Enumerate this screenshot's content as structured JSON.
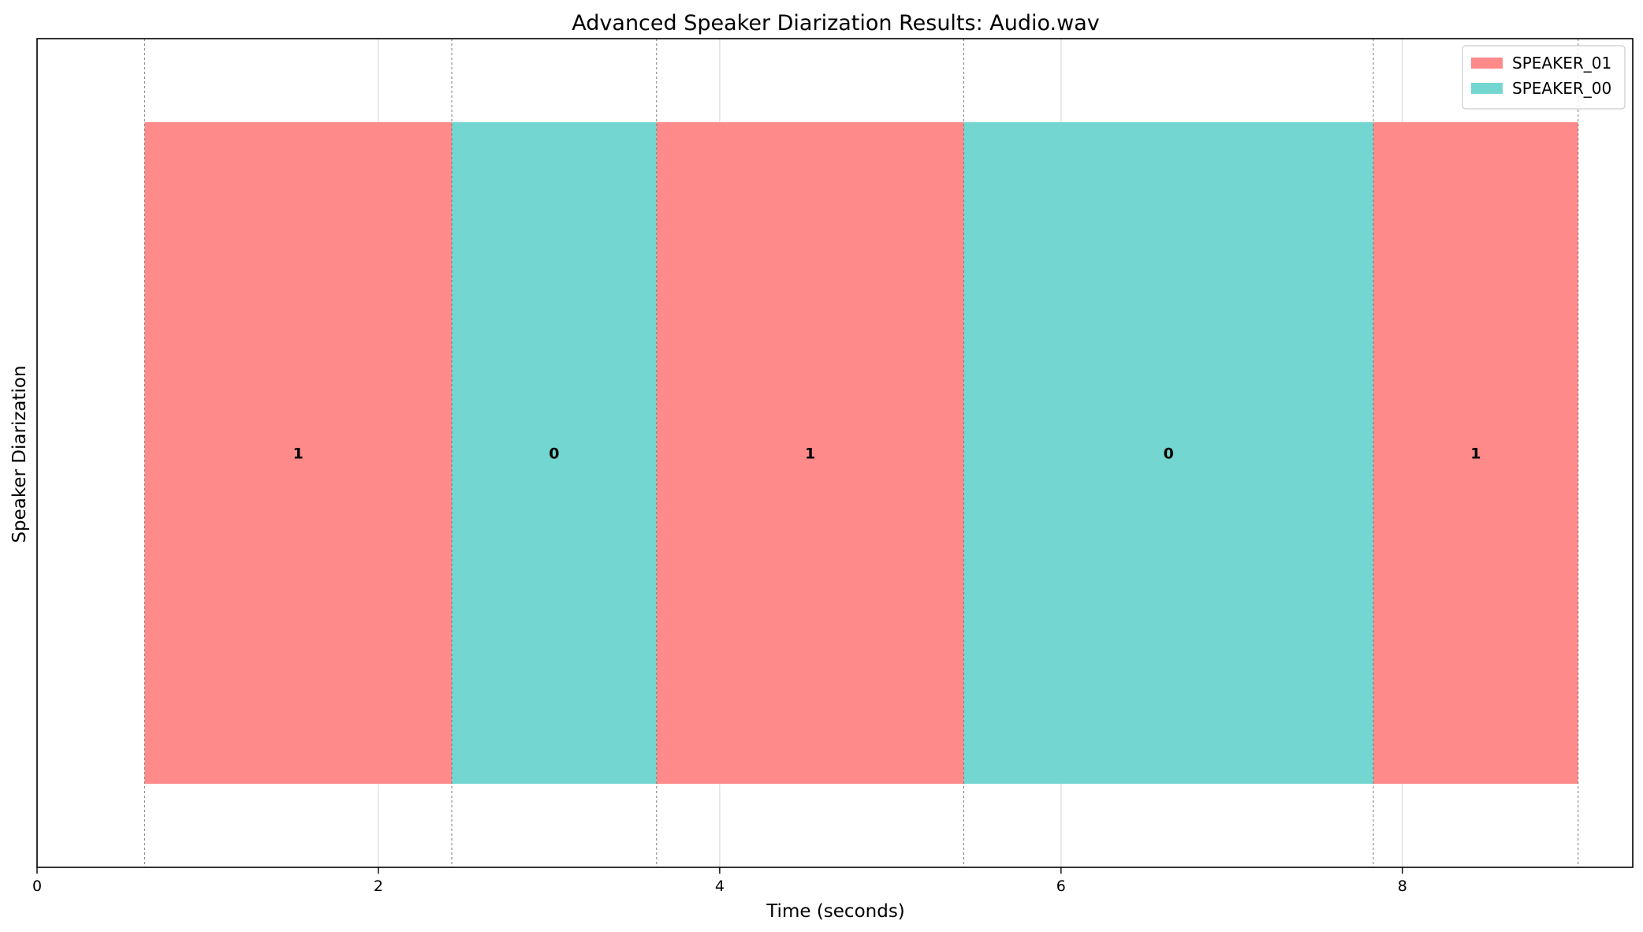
{
  "chart_data": {
    "type": "bar",
    "orientation": "horizontal-timeline",
    "title": "Advanced Speaker Diarization Results: Audio.wav",
    "xlabel": "Time (seconds)",
    "ylabel": "Speaker Diarization",
    "xlim": [
      0,
      9.35
    ],
    "xticks": [
      0,
      2,
      4,
      6,
      8
    ],
    "grid": true,
    "legend_position": "top-right",
    "speakers": [
      {
        "name": "SPEAKER_01",
        "color": "#ff8a8a"
      },
      {
        "name": "SPEAKER_00",
        "color": "#73d6d0"
      }
    ],
    "segments": [
      {
        "speaker": "SPEAKER_01",
        "start": 0.63,
        "end": 2.43,
        "label": "1"
      },
      {
        "speaker": "SPEAKER_00",
        "start": 2.43,
        "end": 3.63,
        "label": "0"
      },
      {
        "speaker": "SPEAKER_01",
        "start": 3.63,
        "end": 5.43,
        "label": "1"
      },
      {
        "speaker": "SPEAKER_00",
        "start": 5.43,
        "end": 7.83,
        "label": "0"
      },
      {
        "speaker": "SPEAKER_01",
        "start": 7.83,
        "end": 9.03,
        "label": "1"
      }
    ]
  }
}
